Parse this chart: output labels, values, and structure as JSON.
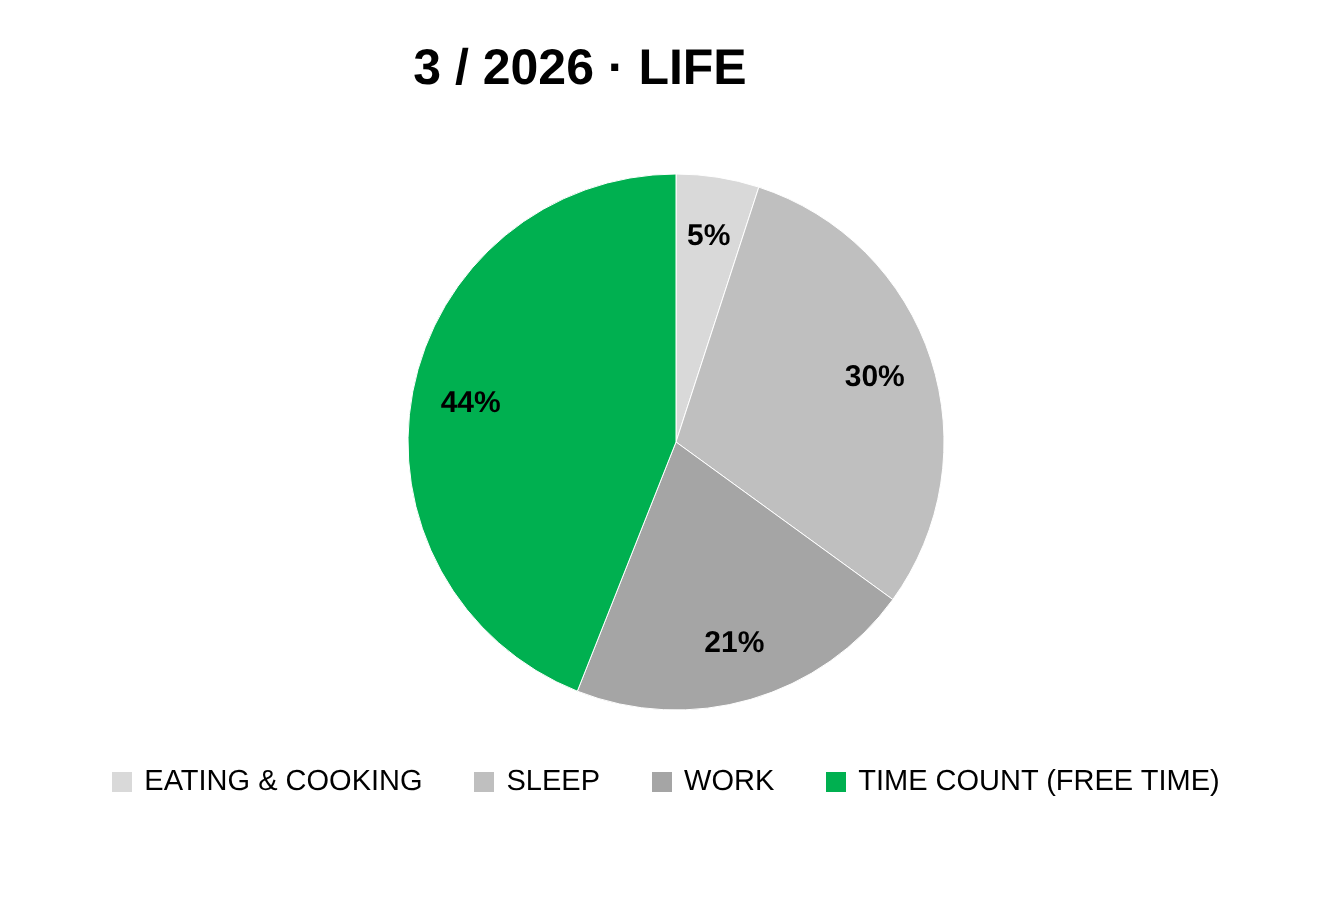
{
  "chart_data": {
    "type": "pie",
    "title": "3 / 2026 · LIFE",
    "categories": [
      "EATING & COOKING",
      "SLEEP",
      "WORK",
      "TIME COUNT (FREE TIME)"
    ],
    "values": [
      5,
      30,
      21,
      44
    ],
    "colors": [
      "#d9d9d9",
      "#bfbfbf",
      "#a5a5a5",
      "#00b050"
    ],
    "value_labels": [
      "5%",
      "30%",
      "21%",
      "44%"
    ],
    "legend": "bottom"
  }
}
